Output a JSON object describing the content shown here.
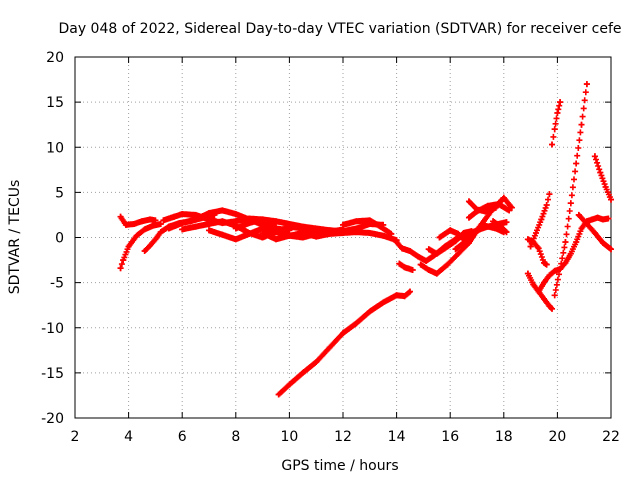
{
  "chart_data": {
    "type": "scatter",
    "title": "Day 048 of 2022, Sidereal Day-to-day VTEC variation (SDTVAR) for receiver cefe",
    "xlabel": "GPS time / hours",
    "ylabel": "SDTVAR / TECUs",
    "xlim": [
      2,
      22
    ],
    "ylim": [
      -20,
      20
    ],
    "xticks": [
      "2",
      "4",
      "6",
      "8",
      "10",
      "12",
      "14",
      "16",
      "18",
      "20",
      "22"
    ],
    "yticks": [
      "-20",
      "-15",
      "-10",
      "-5",
      "0",
      "5",
      "10",
      "15",
      "20"
    ],
    "grid": true,
    "marker": "+",
    "color": "#ff0000",
    "series": [
      {
        "name": "s1",
        "x": [
          3.7,
          3.8,
          4.0,
          4.3,
          4.6,
          4.9,
          5.2
        ],
        "y": [
          -3.4,
          -2.5,
          -1.0,
          0.2,
          0.9,
          1.3,
          1.5
        ]
      },
      {
        "name": "s2",
        "x": [
          3.7,
          3.9,
          4.2,
          4.5,
          4.8,
          5.0
        ],
        "y": [
          2.3,
          1.4,
          1.5,
          1.8,
          2.0,
          1.9
        ]
      },
      {
        "name": "s3",
        "x": [
          4.6,
          4.8,
          5.0,
          5.2,
          5.5,
          5.9,
          6.3,
          6.8,
          7.2
        ],
        "y": [
          -1.5,
          -0.9,
          -0.2,
          0.6,
          1.2,
          1.6,
          1.8,
          2.2,
          2.5
        ]
      },
      {
        "name": "s4",
        "x": [
          5.3,
          5.7,
          6.0,
          6.5,
          7.0,
          7.5,
          8.0,
          8.5,
          9.0,
          9.5
        ],
        "y": [
          1.9,
          2.3,
          2.6,
          2.5,
          2.0,
          1.6,
          1.8,
          2.1,
          2.0,
          1.6
        ]
      },
      {
        "name": "s5",
        "x": [
          5.5,
          6.0,
          6.5,
          7.0,
          7.5,
          8.0,
          8.5,
          9.0,
          9.5,
          10.0
        ],
        "y": [
          1.0,
          1.6,
          2.0,
          2.7,
          3.0,
          2.6,
          2.0,
          1.4,
          1.0,
          0.8
        ]
      },
      {
        "name": "s6",
        "x": [
          6.0,
          6.5,
          7.0,
          7.5,
          8.0,
          8.5,
          9.0,
          9.5,
          10.0,
          10.5,
          11.0
        ],
        "y": [
          0.9,
          1.2,
          1.5,
          1.8,
          1.3,
          0.5,
          0.0,
          0.6,
          1.2,
          1.0,
          0.6
        ]
      },
      {
        "name": "s7",
        "x": [
          7.0,
          7.5,
          8.0,
          8.5,
          9.0,
          9.5,
          10.0,
          10.5,
          11.0,
          11.5,
          12.0
        ],
        "y": [
          0.8,
          0.3,
          -0.2,
          0.4,
          1.0,
          0.6,
          0.2,
          0.0,
          0.4,
          0.6,
          0.9
        ]
      },
      {
        "name": "s8",
        "x": [
          8.0,
          8.5,
          9.0,
          9.5,
          10.0,
          10.5,
          11.0,
          11.5,
          12.0,
          12.5,
          13.0,
          13.5
        ],
        "y": [
          1.0,
          1.6,
          2.0,
          1.8,
          1.5,
          1.2,
          1.0,
          0.8,
          0.7,
          1.0,
          1.5,
          1.4
        ]
      },
      {
        "name": "s9",
        "x": [
          9.0,
          9.5,
          10.0,
          10.5,
          11.0,
          11.5,
          12.0,
          12.5,
          13.0,
          13.5,
          14.0
        ],
        "y": [
          0.5,
          -0.2,
          0.2,
          0.5,
          0.1,
          0.4,
          0.5,
          0.6,
          0.5,
          0.2,
          -0.3
        ]
      },
      {
        "name": "s10",
        "x": [
          9.6,
          10.0,
          10.5,
          11.0,
          11.5,
          12.0,
          12.5,
          13.0,
          13.5,
          14.0,
          14.3,
          14.5
        ],
        "y": [
          -17.4,
          -16.3,
          -15.0,
          -13.8,
          -12.2,
          -10.6,
          -9.5,
          -8.2,
          -7.2,
          -6.4,
          -6.5,
          -6.0
        ]
      },
      {
        "name": "s11",
        "x": [
          12.0,
          12.5,
          13.0,
          13.4,
          13.8
        ],
        "y": [
          1.4,
          1.8,
          1.9,
          1.2,
          0.4
        ]
      },
      {
        "name": "s12",
        "x": [
          14.0,
          14.2,
          14.5,
          14.8,
          15.1,
          15.4,
          15.8,
          16.2,
          16.6,
          17.0,
          17.4,
          17.8,
          18.1
        ],
        "y": [
          -0.5,
          -1.2,
          -1.5,
          -2.1,
          -2.6,
          -2.0,
          -1.0,
          -0.2,
          0.3,
          0.8,
          1.2,
          1.5,
          1.7
        ]
      },
      {
        "name": "s13",
        "x": [
          14.1,
          14.3,
          14.6
        ],
        "y": [
          -2.9,
          -3.3,
          -3.6
        ]
      },
      {
        "name": "s14",
        "x": [
          14.9,
          15.2,
          15.5,
          15.9,
          16.3,
          16.7,
          17.1,
          17.5,
          17.9
        ],
        "y": [
          -3.0,
          -3.6,
          -4.0,
          -3.0,
          -1.8,
          -0.6,
          1.2,
          2.8,
          4.1
        ]
      },
      {
        "name": "s15",
        "x": [
          15.2,
          15.5,
          15.8,
          16.2,
          16.5,
          16.8
        ],
        "y": [
          -1.3,
          -1.8,
          -1.2,
          -0.4,
          0.5,
          0.7
        ]
      },
      {
        "name": "s16",
        "x": [
          15.6,
          16.0,
          16.3,
          16.6
        ],
        "y": [
          0.0,
          0.8,
          0.4,
          -0.5
        ]
      },
      {
        "name": "s17",
        "x": [
          16.2,
          16.5,
          16.9,
          17.3,
          17.7,
          18.0
        ],
        "y": [
          -1.3,
          -0.6,
          0.5,
          1.3,
          1.0,
          0.6
        ]
      },
      {
        "name": "s18",
        "x": [
          16.7,
          17.0,
          17.3,
          17.7,
          18.0,
          18.3
        ],
        "y": [
          4.0,
          3.1,
          2.9,
          3.3,
          4.4,
          3.3
        ]
      },
      {
        "name": "s19",
        "x": [
          16.7,
          17.0,
          17.4,
          17.8,
          18.2
        ],
        "y": [
          2.2,
          2.9,
          3.5,
          3.7,
          3.0
        ]
      },
      {
        "name": "s20",
        "x": [
          17.6,
          17.9,
          18.1
        ],
        "y": [
          1.8,
          1.2,
          0.6
        ]
      },
      {
        "name": "s21",
        "x": [
          18.9,
          19.1,
          19.3,
          19.5,
          19.6
        ],
        "y": [
          -0.2,
          -0.5,
          -1.2,
          -2.8,
          -3.0
        ]
      },
      {
        "name": "s22",
        "x": [
          18.9,
          19.1,
          19.3,
          19.5,
          19.7,
          19.8
        ],
        "y": [
          -4.0,
          -5.2,
          -6.0,
          -6.8,
          -7.6,
          -7.9
        ]
      },
      {
        "name": "s23",
        "x": [
          19.0,
          19.2,
          19.4,
          19.6,
          19.7
        ],
        "y": [
          -1.0,
          0.5,
          2.0,
          3.6,
          4.8
        ]
      },
      {
        "name": "s24",
        "x": [
          19.3,
          19.5,
          19.7,
          19.9,
          20.1,
          20.3,
          20.5,
          20.7,
          20.9,
          21.1,
          21.3,
          21.5,
          21.7,
          21.9
        ],
        "y": [
          -6.0,
          -5.0,
          -4.2,
          -3.7,
          -3.5,
          -2.8,
          -1.8,
          -0.5,
          1.0,
          1.8,
          2.0,
          2.2,
          2.0,
          2.1
        ]
      },
      {
        "name": "s25",
        "x": [
          19.8,
          19.9,
          20.0,
          20.1
        ],
        "y": [
          10.3,
          12.0,
          13.8,
          15.0
        ]
      },
      {
        "name": "s26",
        "x": [
          19.9,
          20.1,
          20.3,
          20.5,
          20.7,
          20.9,
          21.1
        ],
        "y": [
          -6.4,
          -3.5,
          -0.5,
          3.8,
          8.2,
          12.5,
          17.0
        ]
      },
      {
        "name": "s27",
        "x": [
          20.8,
          21.1,
          21.4,
          21.7,
          22.0
        ],
        "y": [
          2.5,
          1.5,
          0.5,
          -0.6,
          -1.3
        ]
      },
      {
        "name": "s28",
        "x": [
          21.4,
          21.6,
          21.8,
          22.0
        ],
        "y": [
          9.0,
          7.2,
          5.6,
          4.2
        ]
      }
    ]
  }
}
